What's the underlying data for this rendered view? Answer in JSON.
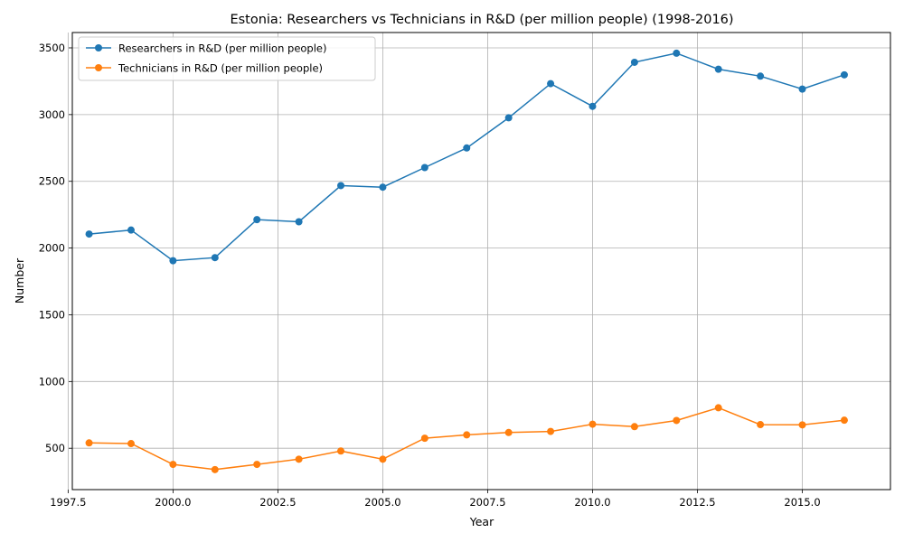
{
  "chart_data": {
    "type": "line",
    "title": "Estonia: Researchers vs Technicians in R&D (per million people) (1998-2016)",
    "xlabel": "Year",
    "ylabel": "Number",
    "xlim": [
      1997.6,
      2017.1
    ],
    "ylim": [
      190,
      3615
    ],
    "x_ticks": [
      1997.5,
      2000.0,
      2002.5,
      2005.0,
      2007.5,
      2010.0,
      2012.5,
      2015.0
    ],
    "x_tick_labels": [
      "1997.5",
      "2000.0",
      "2002.5",
      "2005.0",
      "2007.5",
      "2010.0",
      "2012.5",
      "2015.0"
    ],
    "y_ticks": [
      500,
      1000,
      1500,
      2000,
      2500,
      3000,
      3500
    ],
    "y_tick_labels": [
      "500",
      "1000",
      "1500",
      "2000",
      "2500",
      "3000",
      "3500"
    ],
    "grid": true,
    "legend_position": "upper-left",
    "x": [
      1998,
      1999,
      2000,
      2001,
      2002,
      2003,
      2004,
      2005,
      2006,
      2007,
      2008,
      2009,
      2010,
      2011,
      2012,
      2013,
      2014,
      2015,
      2016
    ],
    "series": [
      {
        "name": "Researchers in R&D (per million people)",
        "color": "#1f77b4",
        "values": [
          2105,
          2135,
          1905,
          1928,
          2213,
          2197,
          2468,
          2456,
          2603,
          2750,
          2976,
          3232,
          3062,
          3392,
          3460,
          3340,
          3288,
          3191,
          3298
        ]
      },
      {
        "name": "Technicians in R&D (per million people)",
        "color": "#ff7f0e",
        "values": [
          540,
          535,
          379,
          340,
          379,
          418,
          479,
          418,
          575,
          600,
          618,
          626,
          680,
          662,
          708,
          803,
          677,
          675,
          710
        ]
      }
    ]
  }
}
